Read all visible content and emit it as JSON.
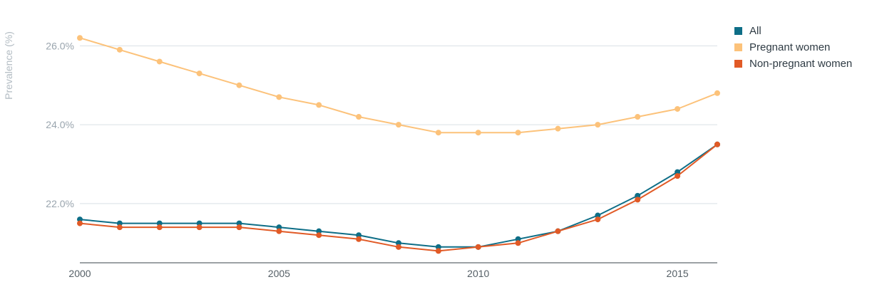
{
  "chart_data": {
    "type": "line",
    "ylabel": "Prevalence (%)",
    "x": [
      2000,
      2001,
      2002,
      2003,
      2004,
      2005,
      2006,
      2007,
      2008,
      2009,
      2010,
      2011,
      2012,
      2013,
      2014,
      2015,
      2016
    ],
    "x_ticks": [
      "2000",
      "2005",
      "2010",
      "2015"
    ],
    "y_ticks": [
      "22.0%",
      "24.0%",
      "26.0%"
    ],
    "ylim": [
      20.5,
      26.8
    ],
    "grid": true,
    "legend_position": "top-right",
    "series": [
      {
        "name": "All",
        "color": "#0e6e87",
        "values": [
          21.6,
          21.5,
          21.5,
          21.5,
          21.5,
          21.4,
          21.3,
          21.2,
          21.0,
          20.9,
          20.9,
          21.1,
          21.3,
          21.7,
          22.2,
          22.8,
          23.5
        ]
      },
      {
        "name": "Pregnant women",
        "color": "#fcc27a",
        "values": [
          26.2,
          25.9,
          25.6,
          25.3,
          25.0,
          24.7,
          24.5,
          24.2,
          24.0,
          23.8,
          23.8,
          23.8,
          23.9,
          24.0,
          24.2,
          24.4,
          24.8
        ]
      },
      {
        "name": "Non-pregnant women",
        "color": "#e15a26",
        "values": [
          21.5,
          21.4,
          21.4,
          21.4,
          21.4,
          21.3,
          21.2,
          21.1,
          20.9,
          20.8,
          20.9,
          21.0,
          21.3,
          21.6,
          22.1,
          22.7,
          23.5
        ]
      }
    ]
  }
}
